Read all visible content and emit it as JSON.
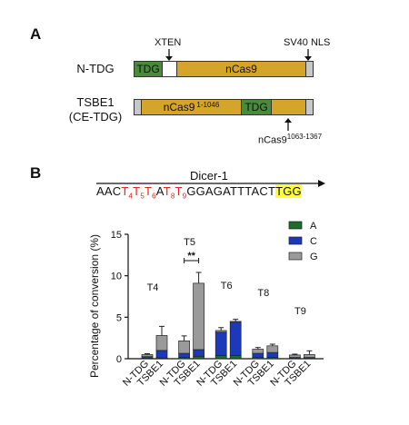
{
  "panel_a": {
    "letter": "A",
    "xten_label": "XTEN",
    "nls_label": "SV40 NLS",
    "ntdg": {
      "label": "N-TDG",
      "tdg": "TDG",
      "ncas9": "nCas9"
    },
    "tsbe1": {
      "label_line1": "TSBE1",
      "label_line2": "(CE-TDG)",
      "ncas9_a": "nCas9",
      "ncas9_a_sup": "1-1046",
      "tdg": "TDG",
      "bottom_label": "nCas9",
      "bottom_label_sup": "1063-1367"
    },
    "colors": {
      "tdg": "#4a8a3c",
      "ncas9": "#d4a52a",
      "xten": "#ffffff",
      "nls": "#c8c8c8"
    }
  },
  "panel_b": {
    "letter": "B",
    "gene_label": "Dicer-1",
    "sequence": {
      "p1": "AAC",
      "t4": "T",
      "s4": "4",
      "t5": "T",
      "s5": "5",
      "t6": "T",
      "s6": "6",
      "p2": "A",
      "t8": "T",
      "s8": "8",
      "t9": "T",
      "s9": "9",
      "p3": "GGAGATTTACT",
      "pam": "TGG"
    }
  },
  "chart_data": {
    "type": "bar",
    "stacked": true,
    "ylabel": "Percentage of conversion (%)",
    "ylim": [
      0,
      15
    ],
    "yticks": [
      "0",
      "5",
      "10",
      "15"
    ],
    "groups": [
      "T4",
      "T5",
      "T6",
      "T8",
      "T9"
    ],
    "categories": [
      "N-TDG",
      "TSBE1",
      "N-TDG",
      "TSBE1",
      "N-TDG",
      "TSBE1",
      "N-TDG",
      "TSBE1",
      "N-TDG",
      "TSBE1"
    ],
    "series": [
      {
        "name": "A",
        "color": "#1e6b2e",
        "values": [
          0.05,
          0.1,
          0.15,
          0.3,
          0.4,
          0.4,
          0.15,
          0.15,
          0.05,
          0.05
        ]
      },
      {
        "name": "C",
        "color": "#1c39bb",
        "values": [
          0.2,
          0.9,
          0.5,
          0.8,
          2.8,
          4.0,
          0.5,
          0.6,
          0.1,
          0.1
        ]
      },
      {
        "name": "G",
        "color": "#9a9a9a",
        "values": [
          0.25,
          1.8,
          1.5,
          8.0,
          0.2,
          0.1,
          0.5,
          0.8,
          0.3,
          0.35
        ]
      }
    ],
    "errors": [
      0.1,
      1.1,
      0.6,
      1.3,
      0.35,
      0.25,
      0.2,
      0.2,
      0.1,
      0.45
    ],
    "significance": {
      "group": "T5",
      "label": "**"
    },
    "legend_position": "top-right",
    "grid": false
  }
}
